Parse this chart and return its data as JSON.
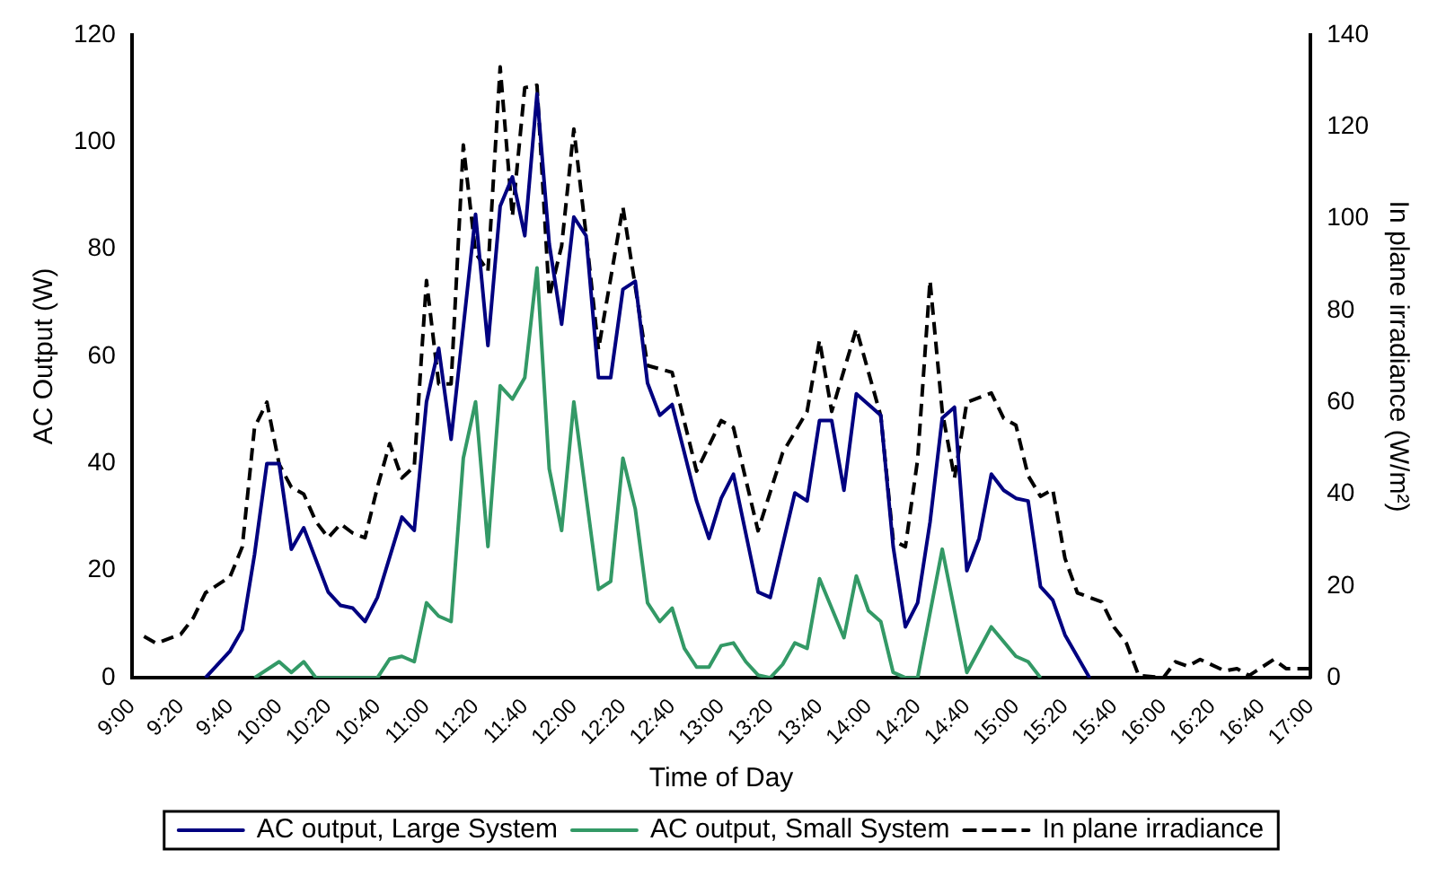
{
  "chart_data": {
    "type": "line",
    "xlabel": "Time of Day",
    "ylabel": "AC Output (W)",
    "y2label": "In plane irradiance (W/m²)",
    "xlim": [
      9,
      17
    ],
    "xticks": [
      {
        "value": 9,
        "label": "9:00"
      },
      {
        "value": 9.333,
        "label": "9:20"
      },
      {
        "value": 9.667,
        "label": "9:40"
      },
      {
        "value": 10,
        "label": "10:00"
      },
      {
        "value": 10.333,
        "label": "10:20"
      },
      {
        "value": 10.667,
        "label": "10:40"
      },
      {
        "value": 11,
        "label": "11:00"
      },
      {
        "value": 11.333,
        "label": "11:20"
      },
      {
        "value": 11.667,
        "label": "11:40"
      },
      {
        "value": 12,
        "label": "12:00"
      },
      {
        "value": 12.333,
        "label": "12:20"
      },
      {
        "value": 12.667,
        "label": "12:40"
      },
      {
        "value": 13,
        "label": "13:00"
      },
      {
        "value": 13.333,
        "label": "13:20"
      },
      {
        "value": 13.667,
        "label": "13:40"
      },
      {
        "value": 14,
        "label": "14:00"
      },
      {
        "value": 14.333,
        "label": "14:20"
      },
      {
        "value": 14.667,
        "label": "14:40"
      },
      {
        "value": 15,
        "label": "15:00"
      },
      {
        "value": 15.333,
        "label": "15:20"
      },
      {
        "value": 15.667,
        "label": "15:40"
      },
      {
        "value": 16,
        "label": "16:00"
      },
      {
        "value": 16.333,
        "label": "16:20"
      },
      {
        "value": 16.667,
        "label": "16:40"
      },
      {
        "value": 17,
        "label": "17:00"
      }
    ],
    "ylim": [
      0,
      120
    ],
    "yticks": [
      0,
      20,
      40,
      60,
      80,
      100,
      120
    ],
    "y2lim": [
      0,
      140
    ],
    "y2ticks": [
      0,
      20,
      40,
      60,
      80,
      100,
      120,
      140
    ],
    "grid": false,
    "legend": "bottom",
    "marker": "none",
    "series": [
      {
        "name": "AC output, Large System",
        "color": "#000080",
        "line_style": "solid",
        "x": [
          9.5,
          9.667,
          9.75,
          9.833,
          9.917,
          10,
          10.083,
          10.167,
          10.333,
          10.417,
          10.5,
          10.583,
          10.667,
          10.833,
          10.917,
          11,
          11.083,
          11.167,
          11.333,
          11.417,
          11.5,
          11.583,
          11.667,
          11.75,
          11.833,
          11.917,
          12,
          12.083,
          12.167,
          12.25,
          12.333,
          12.417,
          12.5,
          12.583,
          12.667,
          12.833,
          12.917,
          13,
          13.083,
          13.25,
          13.333,
          13.5,
          13.583,
          13.667,
          13.75,
          13.833,
          13.917,
          14.083,
          14.167,
          14.25,
          14.333,
          14.417,
          14.5,
          14.583,
          14.667,
          14.75,
          14.833,
          14.917,
          15,
          15.083,
          15.167,
          15.25,
          15.333,
          15.5
        ],
        "values": [
          0,
          5,
          9,
          23,
          40,
          40,
          24,
          28,
          16,
          13.5,
          13,
          10.5,
          15,
          30,
          27.5,
          51.5,
          61.5,
          44.5,
          86.5,
          62,
          88,
          93.5,
          82.5,
          109,
          81,
          66,
          86,
          82.5,
          56,
          56,
          72.5,
          74,
          55,
          49,
          51,
          33,
          26,
          33.5,
          38,
          16,
          15,
          34.5,
          33,
          48,
          48,
          35,
          53,
          49,
          24.5,
          9.5,
          14,
          29,
          48.5,
          50.5,
          20,
          26,
          38,
          35,
          33.5,
          33,
          17,
          14.5,
          8,
          0
        ]
      },
      {
        "name": "AC output, Small System",
        "color": "#339966",
        "line_style": "solid",
        "x": [
          9.833,
          10,
          10.083,
          10.167,
          10.25,
          10.667,
          10.75,
          10.833,
          10.917,
          11,
          11.083,
          11.167,
          11.25,
          11.333,
          11.417,
          11.5,
          11.583,
          11.667,
          11.75,
          11.833,
          11.917,
          12,
          12.083,
          12.167,
          12.25,
          12.333,
          12.417,
          12.5,
          12.583,
          12.667,
          12.75,
          12.833,
          12.917,
          13,
          13.083,
          13.167,
          13.25,
          13.333,
          13.417,
          13.5,
          13.583,
          13.667,
          13.833,
          13.917,
          14,
          14.083,
          14.167,
          14.25,
          14.333,
          14.5,
          14.667,
          14.833,
          15,
          15.083,
          15.167
        ],
        "values": [
          0,
          3,
          1,
          3,
          0,
          0,
          3.5,
          4,
          3,
          14,
          11.5,
          10.5,
          41,
          51.5,
          24.5,
          54.5,
          52,
          56,
          76.5,
          39,
          27.5,
          51.5,
          34,
          16.5,
          18,
          41,
          31.5,
          14,
          10.5,
          13,
          5.5,
          2,
          2,
          6,
          6.5,
          3,
          0.5,
          0,
          2.5,
          6.5,
          5.5,
          18.5,
          7.5,
          19,
          12.5,
          10.5,
          1,
          0,
          0,
          24,
          1,
          9.5,
          4,
          3,
          0
        ]
      },
      {
        "name": "In plane irradiance",
        "color": "#000000",
        "line_style": "dashed",
        "axis": "y2",
        "x": [
          9.083,
          9.167,
          9.333,
          9.417,
          9.5,
          9.667,
          9.75,
          9.833,
          9.917,
          10,
          10.083,
          10.167,
          10.25,
          10.333,
          10.417,
          10.5,
          10.583,
          10.667,
          10.75,
          10.833,
          10.917,
          11,
          11.083,
          11.167,
          11.25,
          11.333,
          11.417,
          11.5,
          11.583,
          11.667,
          11.75,
          11.833,
          11.917,
          12,
          12.083,
          12.167,
          12.333,
          12.5,
          12.667,
          12.833,
          13,
          13.083,
          13.25,
          13.417,
          13.583,
          13.667,
          13.75,
          13.917,
          14.083,
          14.167,
          14.25,
          14.333,
          14.417,
          14.5,
          14.583,
          14.667,
          14.833,
          14.917,
          15,
          15.083,
          15.167,
          15.25,
          15.333,
          15.417,
          15.583,
          15.667,
          15.75,
          15.833,
          16,
          16.083,
          16.167,
          16.25,
          16.417,
          16.5,
          16.583,
          16.75,
          16.833,
          17
        ],
        "values": [
          9,
          7.5,
          9.5,
          13,
          18.5,
          22,
          28.5,
          54.5,
          60,
          46.5,
          41.5,
          40,
          34,
          30.5,
          33.5,
          31.5,
          30.5,
          41.5,
          51,
          43.5,
          46,
          86.5,
          64,
          64,
          116,
          92.5,
          88.5,
          133,
          100.5,
          128.5,
          129,
          83,
          94,
          119.5,
          96.5,
          71.5,
          102.5,
          68,
          66.5,
          45,
          56,
          54.5,
          32,
          49,
          58,
          73.5,
          58,
          76,
          57,
          30,
          28.5,
          47.5,
          86.5,
          58,
          43.5,
          60,
          62,
          56.5,
          55,
          44,
          39.5,
          41,
          26,
          18.5,
          16.5,
          11,
          7.5,
          0.5,
          0,
          3.5,
          2.5,
          4,
          1.5,
          2,
          0.5,
          4,
          2,
          2
        ]
      }
    ]
  }
}
